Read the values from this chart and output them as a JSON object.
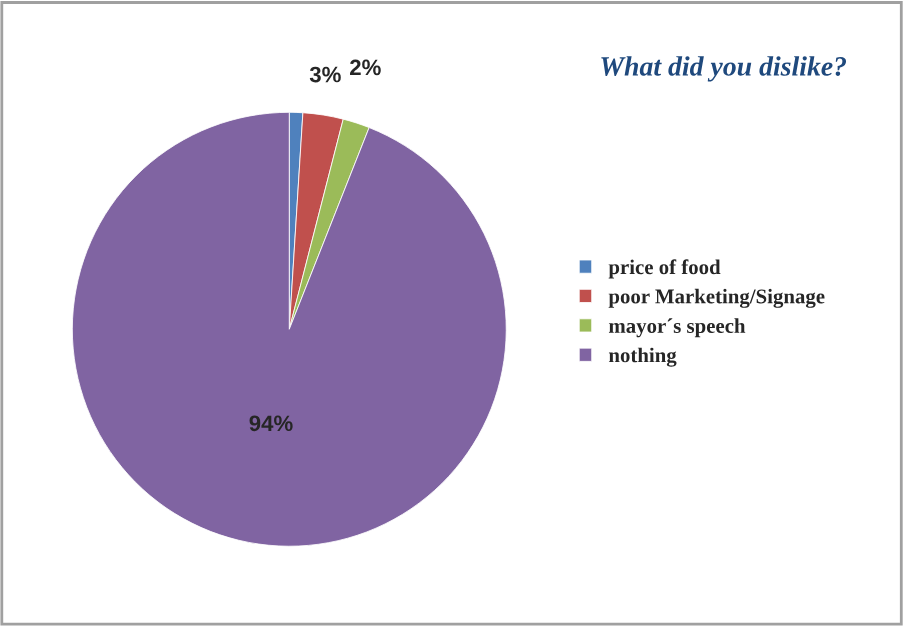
{
  "chart_data": {
    "type": "pie",
    "title": "What did you dislike?",
    "categories": [
      "price of food",
      "poor Marketing/Signage",
      "mayor´s speech",
      "nothing"
    ],
    "values": [
      1,
      3,
      2,
      94
    ],
    "value_labels": [
      null,
      "3%",
      "2%",
      "94%"
    ],
    "colors": [
      "#4f81bd",
      "#c0504d",
      "#9bbb59",
      "#8064a2"
    ],
    "legend": "right"
  }
}
